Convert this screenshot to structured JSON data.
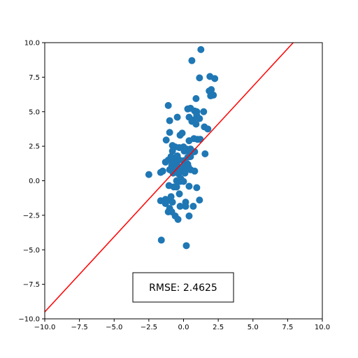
{
  "chart_data": {
    "type": "scatter",
    "title": "",
    "xlabel": "",
    "ylabel": "",
    "xlim": [
      -10,
      10
    ],
    "ylim": [
      -10,
      10
    ],
    "grid": false,
    "x_ticks": [
      -10.0,
      -7.5,
      -5.0,
      -2.5,
      0.0,
      2.5,
      5.0,
      7.5,
      10.0
    ],
    "y_ticks": [
      -10.0,
      -7.5,
      -5.0,
      -2.5,
      0.0,
      2.5,
      5.0,
      7.5,
      10.0
    ],
    "x_tick_labels": [
      "−10.0",
      "−7.5",
      "−5.0",
      "−2.5",
      "0.0",
      "2.5",
      "5.0",
      "7.5",
      "10.0"
    ],
    "y_tick_labels": [
      "−10.0",
      "−7.5",
      "−5.0",
      "−2.5",
      "0.0",
      "2.5",
      "5.0",
      "7.5",
      "10.0"
    ],
    "point_color": "#1f77b4",
    "line_color": "#ff0000",
    "fit_line": {
      "x": [
        -10,
        7.9
      ],
      "y": [
        -9.5,
        10
      ]
    },
    "annotation": "RMSE: 2.4625",
    "points": [
      [
        1.25,
        9.5
      ],
      [
        0.6,
        8.7
      ],
      [
        1.9,
        7.55
      ],
      [
        2.25,
        7.4
      ],
      [
        1.15,
        7.45
      ],
      [
        2.0,
        6.6
      ],
      [
        1.85,
        6.5
      ],
      [
        2.15,
        6.2
      ],
      [
        1.95,
        6.15
      ],
      [
        0.9,
        5.95
      ],
      [
        -1.1,
        5.45
      ],
      [
        0.3,
        5.2
      ],
      [
        0.5,
        5.25
      ],
      [
        0.8,
        5.05
      ],
      [
        1.45,
        5.0
      ],
      [
        0.95,
        5.0
      ],
      [
        0.95,
        4.75
      ],
      [
        0.4,
        4.6
      ],
      [
        -0.45,
        4.6
      ],
      [
        1.15,
        4.5
      ],
      [
        0.7,
        4.4
      ],
      [
        0.6,
        4.3
      ],
      [
        -1.0,
        4.35
      ],
      [
        0.9,
        4.1
      ],
      [
        1.5,
        3.9
      ],
      [
        1.75,
        3.75
      ],
      [
        -1.0,
        3.5
      ],
      [
        -0.1,
        3.45
      ],
      [
        -0.25,
        3.3
      ],
      [
        0.75,
        3.05
      ],
      [
        1.0,
        3.0
      ],
      [
        1.2,
        3.0
      ],
      [
        0.4,
        2.9
      ],
      [
        -1.25,
        2.95
      ],
      [
        -0.8,
        2.55
      ],
      [
        -0.6,
        2.45
      ],
      [
        -0.3,
        2.4
      ],
      [
        0.0,
        2.45
      ],
      [
        0.2,
        2.3
      ],
      [
        0.5,
        2.3
      ],
      [
        -0.8,
        2.15
      ],
      [
        0.05,
        2.15
      ],
      [
        0.4,
        2.1
      ],
      [
        0.8,
        2.1
      ],
      [
        1.55,
        1.95
      ],
      [
        -0.9,
        1.75
      ],
      [
        -0.45,
        1.8
      ],
      [
        0.3,
        1.7
      ],
      [
        0.5,
        1.75
      ],
      [
        -1.1,
        1.5
      ],
      [
        -0.7,
        1.5
      ],
      [
        -0.3,
        1.5
      ],
      [
        0.0,
        1.45
      ],
      [
        -1.3,
        1.35
      ],
      [
        -0.55,
        1.3
      ],
      [
        0.1,
        1.25
      ],
      [
        0.3,
        1.2
      ],
      [
        -0.85,
        1.1
      ],
      [
        -0.4,
        1.05
      ],
      [
        0.0,
        1.0
      ],
      [
        0.35,
        1.0
      ],
      [
        -0.15,
        0.9
      ],
      [
        -1.0,
        0.8
      ],
      [
        -0.6,
        0.8
      ],
      [
        0.2,
        0.85
      ],
      [
        0.5,
        0.8
      ],
      [
        -1.5,
        0.7
      ],
      [
        -0.3,
        0.7
      ],
      [
        0.8,
        0.7
      ],
      [
        -1.65,
        0.6
      ],
      [
        -0.75,
        0.55
      ],
      [
        -0.35,
        0.5
      ],
      [
        0.1,
        0.55
      ],
      [
        -2.5,
        0.45
      ],
      [
        -0.2,
        0.15
      ],
      [
        -0.5,
        0.0
      ],
      [
        -0.25,
        -0.05
      ],
      [
        0.0,
        -0.05
      ],
      [
        -1.05,
        -0.35
      ],
      [
        -0.7,
        -0.45
      ],
      [
        -0.5,
        -0.45
      ],
      [
        0.4,
        -0.4
      ],
      [
        0.95,
        -0.5
      ],
      [
        -0.3,
        -0.95
      ],
      [
        -0.9,
        -1.15
      ],
      [
        -1.3,
        -1.35
      ],
      [
        -1.65,
        -1.45
      ],
      [
        -1.2,
        -1.45
      ],
      [
        -0.8,
        -1.55
      ],
      [
        0.15,
        -1.55
      ],
      [
        1.15,
        -1.4
      ],
      [
        -1.3,
        -1.65
      ],
      [
        -0.25,
        -1.85
      ],
      [
        0.15,
        -1.85
      ],
      [
        0.7,
        -1.85
      ],
      [
        -1.0,
        -2.0
      ],
      [
        -1.1,
        -2.25
      ],
      [
        -0.85,
        -2.25
      ],
      [
        -0.6,
        -2.55
      ],
      [
        0.4,
        -2.55
      ],
      [
        -0.4,
        -2.8
      ],
      [
        -1.6,
        -4.3
      ],
      [
        0.2,
        -4.7
      ]
    ]
  }
}
